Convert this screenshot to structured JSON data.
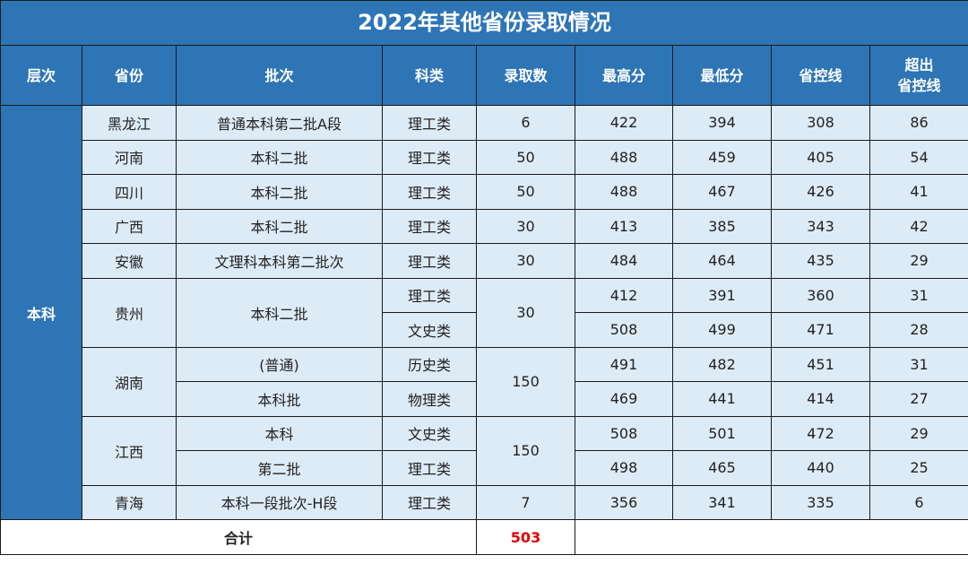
{
  "title": "2022年其他省份录取情况",
  "headers": [
    "层次",
    "省份",
    "批次",
    "科类",
    "录取数",
    "最高分",
    "最低分",
    "省控线",
    "超出\n省控线"
  ],
  "level": "本科",
  "rows": [
    {
      "province": "黑龙江",
      "batch": "普通本科第二批A段",
      "category": "理工类",
      "admitted": "6",
      "max": "422",
      "min": "394",
      "line": "308",
      "over": "86"
    },
    {
      "province": "河南",
      "batch": "本科二批",
      "category": "理工类",
      "admitted": "50",
      "max": "488",
      "min": "459",
      "line": "405",
      "over": "54"
    },
    {
      "province": "四川",
      "batch": "本科二批",
      "category": "理工类",
      "admitted": "50",
      "max": "488",
      "min": "467",
      "line": "426",
      "over": "41"
    },
    {
      "province": "广西",
      "batch": "本科二批",
      "category": "理工类",
      "admitted": "30",
      "max": "413",
      "min": "385",
      "line": "343",
      "over": "42"
    },
    {
      "province": "安徽",
      "batch": "文理科本科第二批次",
      "category": "理工类",
      "admitted": "30",
      "max": "484",
      "min": "464",
      "line": "435",
      "over": "29"
    },
    {
      "province": "贵州",
      "batch": "本科二批",
      "category": "理工类",
      "admitted": "30",
      "max": "412",
      "min": "391",
      "line": "360",
      "over": "31"
    },
    {
      "category": "文史类",
      "max": "508",
      "min": "499",
      "line": "471",
      "over": "28"
    },
    {
      "province": "湖南",
      "batch": "(普通)",
      "category": "历史类",
      "admitted": "150",
      "max": "491",
      "min": "482",
      "line": "451",
      "over": "31"
    },
    {
      "batch": "本科批",
      "category": "物理类",
      "max": "469",
      "min": "441",
      "line": "414",
      "over": "27"
    },
    {
      "province": "江西",
      "batch": "本科",
      "category": "文史类",
      "admitted": "150",
      "max": "508",
      "min": "501",
      "line": "472",
      "over": "29"
    },
    {
      "batch": "第二批",
      "category": "理工类",
      "max": "498",
      "min": "465",
      "line": "440",
      "over": "25"
    },
    {
      "province": "青海",
      "batch": "本科一段批次-H段",
      "category": "理工类",
      "admitted": "7",
      "max": "356",
      "min": "341",
      "line": "335",
      "over": "6"
    }
  ],
  "footer": {
    "label": "合计",
    "total": "503"
  },
  "colors": {
    "header_bg": "#2e75b6",
    "row_bg": "#ddebf7",
    "total_text": "#e00000"
  }
}
